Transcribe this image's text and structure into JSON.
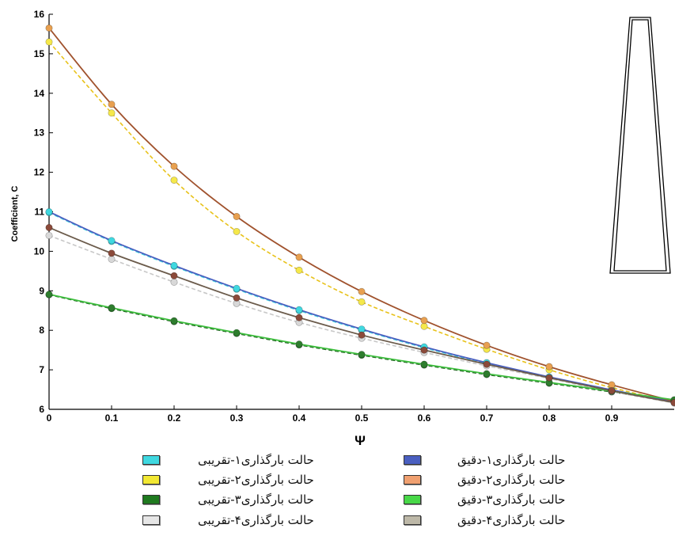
{
  "chart_data": {
    "type": "line",
    "title": "",
    "xlabel": "Ψ",
    "ylabel": "Coefficient, C",
    "xlim": [
      0,
      1
    ],
    "ylim": [
      6,
      16
    ],
    "x_ticks": [
      "0",
      "0.1",
      "0.2",
      "0.3",
      "0.4",
      "0.5",
      "0.6",
      "0.7",
      "0.8",
      "0.9"
    ],
    "y_ticks": [
      "6",
      "7",
      "8",
      "9",
      "10",
      "11",
      "12",
      "13",
      "14",
      "15",
      "16"
    ],
    "x": [
      0,
      0.1,
      0.2,
      0.3,
      0.4,
      0.5,
      0.6,
      0.7,
      0.8,
      0.9,
      1.0
    ],
    "grid": false,
    "legend_position": "bottom",
    "series": [
      {
        "name": "حالت بارگذاری۱-تقریبی",
        "color": "#3fd8e0",
        "style": "dashed",
        "marker": "#3fd8e0",
        "values": [
          10.98,
          10.25,
          9.62,
          9.04,
          8.5,
          8.01,
          7.56,
          7.16,
          6.8,
          6.47,
          6.18
        ]
      },
      {
        "name": "حالت بارگذاری۱-دقیق",
        "color": "#4a5fc0",
        "style": "solid",
        "marker": "#3fd8e0",
        "values": [
          11.0,
          10.27,
          9.64,
          9.06,
          8.52,
          8.03,
          7.58,
          7.18,
          6.82,
          6.49,
          6.19
        ]
      },
      {
        "name": "حالت بارگذاری۲-تقریبی",
        "color": "#e8c21a",
        "style": "dashed",
        "marker": "#f5e84a",
        "values": [
          15.3,
          13.5,
          11.8,
          10.5,
          9.52,
          8.72,
          8.1,
          7.52,
          7.0,
          6.55,
          6.18
        ]
      },
      {
        "name": "حالت بارگذاری۲-دقیق",
        "color": "#a0522d",
        "style": "solid",
        "marker": "#e8a050",
        "values": [
          15.65,
          13.72,
          12.15,
          10.88,
          9.85,
          8.98,
          8.25,
          7.62,
          7.08,
          6.62,
          6.2
        ]
      },
      {
        "name": "حالت بارگذاری۳-تقریبی",
        "color": "#1f5f1f",
        "style": "dashed",
        "marker": "#2e7d2e",
        "values": [
          8.9,
          8.55,
          8.22,
          7.92,
          7.63,
          7.37,
          7.12,
          6.88,
          6.66,
          6.44,
          6.22
        ]
      },
      {
        "name": "حالت بارگذاری۳-دقیق",
        "color": "#3fbf3f",
        "style": "solid",
        "marker": "#2e7d2e",
        "values": [
          8.91,
          8.57,
          8.24,
          7.94,
          7.65,
          7.39,
          7.14,
          6.9,
          6.68,
          6.46,
          6.24
        ]
      },
      {
        "name": "حالت بارگذاری۴-تقریبی",
        "color": "#c8c8c8",
        "style": "dashed",
        "marker": "#d8d8d8",
        "values": [
          10.4,
          9.8,
          9.22,
          8.68,
          8.2,
          7.8,
          7.44,
          7.1,
          6.78,
          6.45,
          6.16
        ]
      },
      {
        "name": "حالت بارگذاری۴-دقیق",
        "color": "#6b5b4b",
        "style": "solid",
        "marker": "#8b4a3a",
        "values": [
          10.6,
          9.95,
          9.38,
          8.82,
          8.32,
          7.88,
          7.5,
          7.14,
          6.8,
          6.47,
          6.17
        ]
      }
    ]
  },
  "legend": {
    "left_column": [
      {
        "label": "حالت بارگذاری۱-تقریبی",
        "swatch": "#3fd8e0"
      },
      {
        "label": "حالت بارگذاری۲-تقریبی",
        "swatch": "#f2e833"
      },
      {
        "label": "حالت بارگذاری۳-تقریبی",
        "swatch": "#1f7a1f"
      },
      {
        "label": "حالت بارگذاری۴-تقریبی",
        "swatch": "#e6e6e6"
      }
    ],
    "right_column": [
      {
        "label": "حالت بارگذاری۱-دقیق",
        "swatch": "#4a5fc0"
      },
      {
        "label": "حالت بارگذاری۲-دقیق",
        "swatch": "#f0a070"
      },
      {
        "label": "حالت بارگذاری۳-دقیق",
        "swatch": "#48d848"
      },
      {
        "label": "حالت بارگذاری۴-دقیق",
        "swatch": "#bdb8a8"
      }
    ]
  },
  "inset": {
    "shape": "tapered-tower-icon"
  }
}
